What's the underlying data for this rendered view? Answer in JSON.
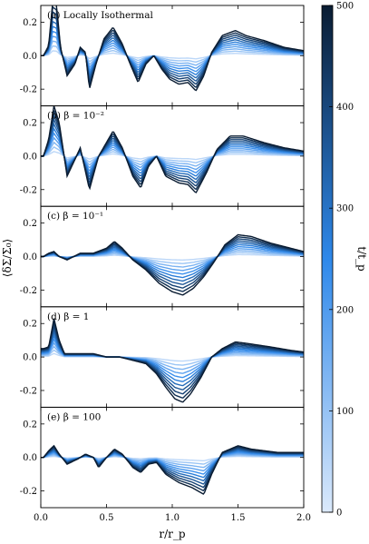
{
  "chart_data": {
    "type": "line",
    "x_label": "r/r_p",
    "y_label": "⟨δΣ/Σ₀⟩",
    "x_range": [
      0.0,
      2.0
    ],
    "y_range": [
      -0.3,
      0.3
    ],
    "x_ticks": [
      "0.0",
      "0.5",
      "1.0",
      "1.5",
      "2.0"
    ],
    "y_ticks": [
      "-0.2",
      "0.0",
      "0.2"
    ],
    "colorbar": {
      "label": "t/t_p",
      "range": [
        0,
        500
      ],
      "ticks": [
        "0",
        "100",
        "200",
        "300",
        "400",
        "500"
      ],
      "color_low": "#dbe9fb",
      "color_mid": "#2e88ea",
      "color_high": "#0a1c32"
    },
    "n_curves": 11,
    "panels": [
      {
        "label": "(a) Locally Isothermal",
        "final_profile": [
          [
            0.02,
            0
          ],
          [
            0.06,
            0.06
          ],
          [
            0.09,
            0.32
          ],
          [
            0.12,
            0.3
          ],
          [
            0.15,
            0.05
          ],
          [
            0.2,
            -0.12
          ],
          [
            0.26,
            -0.05
          ],
          [
            0.3,
            0.05
          ],
          [
            0.34,
            0.02
          ],
          [
            0.37,
            -0.2
          ],
          [
            0.42,
            -0.05
          ],
          [
            0.48,
            0.1
          ],
          [
            0.55,
            0.17
          ],
          [
            0.62,
            0.07
          ],
          [
            0.68,
            -0.05
          ],
          [
            0.74,
            -0.16
          ],
          [
            0.8,
            -0.05
          ],
          [
            0.86,
            0.0
          ],
          [
            0.92,
            -0.08
          ],
          [
            0.98,
            -0.14
          ],
          [
            1.05,
            -0.17
          ],
          [
            1.12,
            -0.16
          ],
          [
            1.18,
            -0.21
          ],
          [
            1.24,
            -0.12
          ],
          [
            1.3,
            0.02
          ],
          [
            1.38,
            0.12
          ],
          [
            1.48,
            0.15
          ],
          [
            1.56,
            0.12
          ],
          [
            1.7,
            0.09
          ],
          [
            1.85,
            0.05
          ],
          [
            2.0,
            0.03
          ]
        ]
      },
      {
        "label": "(b) β = 10⁻²",
        "final_profile": [
          [
            0.02,
            0
          ],
          [
            0.06,
            0.1
          ],
          [
            0.1,
            0.3
          ],
          [
            0.14,
            0.2
          ],
          [
            0.2,
            -0.12
          ],
          [
            0.26,
            -0.02
          ],
          [
            0.3,
            0.05
          ],
          [
            0.37,
            -0.2
          ],
          [
            0.44,
            0.0
          ],
          [
            0.55,
            0.15
          ],
          [
            0.62,
            0.05
          ],
          [
            0.7,
            -0.12
          ],
          [
            0.76,
            -0.19
          ],
          [
            0.82,
            -0.06
          ],
          [
            0.88,
            0.0
          ],
          [
            0.95,
            -0.12
          ],
          [
            1.05,
            -0.16
          ],
          [
            1.12,
            -0.17
          ],
          [
            1.18,
            -0.22
          ],
          [
            1.26,
            -0.1
          ],
          [
            1.34,
            0.04
          ],
          [
            1.44,
            0.12
          ],
          [
            1.54,
            0.12
          ],
          [
            1.7,
            0.08
          ],
          [
            1.85,
            0.05
          ],
          [
            2.0,
            0.03
          ]
        ]
      },
      {
        "label": "(c) β = 10⁻¹",
        "final_profile": [
          [
            0.02,
            0
          ],
          [
            0.06,
            0.02
          ],
          [
            0.1,
            0.03
          ],
          [
            0.14,
            0.0
          ],
          [
            0.2,
            -0.02
          ],
          [
            0.3,
            0.02
          ],
          [
            0.4,
            0.02
          ],
          [
            0.5,
            0.05
          ],
          [
            0.56,
            0.09
          ],
          [
            0.62,
            0.05
          ],
          [
            0.7,
            -0.02
          ],
          [
            0.8,
            -0.08
          ],
          [
            0.9,
            -0.16
          ],
          [
            1.0,
            -0.21
          ],
          [
            1.08,
            -0.23
          ],
          [
            1.16,
            -0.19
          ],
          [
            1.24,
            -0.12
          ],
          [
            1.32,
            -0.03
          ],
          [
            1.4,
            0.07
          ],
          [
            1.5,
            0.13
          ],
          [
            1.6,
            0.12
          ],
          [
            1.75,
            0.08
          ],
          [
            2.0,
            0.03
          ]
        ]
      },
      {
        "label": "(d) β = 1",
        "final_profile": [
          [
            0.02,
            0.05
          ],
          [
            0.06,
            0.06
          ],
          [
            0.1,
            0.23
          ],
          [
            0.14,
            0.1
          ],
          [
            0.18,
            0.02
          ],
          [
            0.3,
            0.02
          ],
          [
            0.4,
            0.02
          ],
          [
            0.5,
            0.0
          ],
          [
            0.6,
            0.0
          ],
          [
            0.7,
            -0.02
          ],
          [
            0.8,
            -0.04
          ],
          [
            0.88,
            -0.1
          ],
          [
            0.95,
            -0.18
          ],
          [
            1.02,
            -0.25
          ],
          [
            1.08,
            -0.27
          ],
          [
            1.14,
            -0.22
          ],
          [
            1.22,
            -0.12
          ],
          [
            1.3,
            0.0
          ],
          [
            1.38,
            0.05
          ],
          [
            1.48,
            0.09
          ],
          [
            1.58,
            0.08
          ],
          [
            1.75,
            0.06
          ],
          [
            1.9,
            0.04
          ],
          [
            2.0,
            0.03
          ]
        ]
      },
      {
        "label": "(e) β = 100",
        "final_profile": [
          [
            0.02,
            0
          ],
          [
            0.06,
            0.04
          ],
          [
            0.1,
            0.07
          ],
          [
            0.14,
            0.02
          ],
          [
            0.2,
            -0.04
          ],
          [
            0.28,
            -0.01
          ],
          [
            0.34,
            0.02
          ],
          [
            0.4,
            0.0
          ],
          [
            0.44,
            -0.06
          ],
          [
            0.5,
            0.0
          ],
          [
            0.56,
            0.05
          ],
          [
            0.62,
            0.02
          ],
          [
            0.7,
            -0.06
          ],
          [
            0.76,
            -0.09
          ],
          [
            0.82,
            -0.04
          ],
          [
            0.88,
            -0.03
          ],
          [
            0.95,
            -0.1
          ],
          [
            1.05,
            -0.15
          ],
          [
            1.15,
            -0.18
          ],
          [
            1.24,
            -0.22
          ],
          [
            1.3,
            -0.1
          ],
          [
            1.38,
            0.03
          ],
          [
            1.5,
            0.07
          ],
          [
            1.6,
            0.05
          ],
          [
            1.8,
            0.03
          ],
          [
            2.0,
            0.03
          ]
        ]
      }
    ]
  }
}
